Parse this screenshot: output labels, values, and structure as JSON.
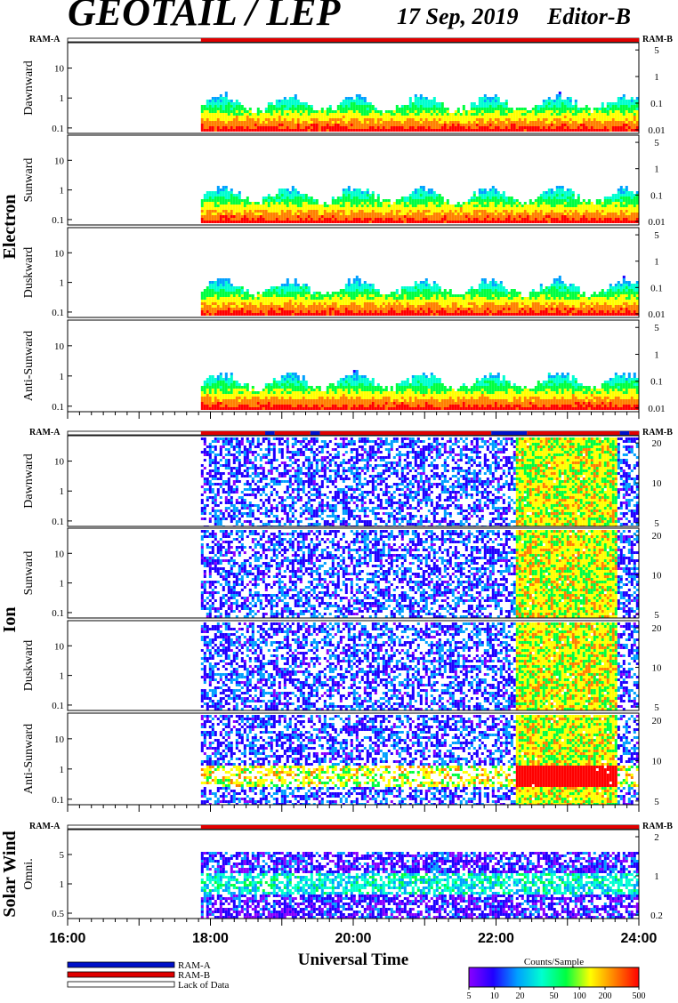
{
  "header": {
    "title": "GEOTAIL / LEP",
    "date": "17 Sep, 2019",
    "editor": "Editor-B"
  },
  "chart_data": {
    "type": "heatmap",
    "instrument": "GEOTAIL / LEP",
    "date": "17 Sep, 2019",
    "editor": "Editor-B",
    "xlabel": "Universal Time",
    "x_ticks": [
      "16:00",
      "18:00",
      "20:00",
      "22:00",
      "24:00"
    ],
    "xlim": [
      "16:00",
      "24:00"
    ],
    "data_start": "17:52",
    "groups": [
      {
        "name": "Electron",
        "mode_left": "RAM-A",
        "mode_right": "RAM-B",
        "panels": [
          {
            "name": "Dawnward",
            "left_ticks": [
              "10",
              "1",
              "0.1"
            ],
            "right_ticks": [
              "5",
              "1",
              "0.1",
              "0.01"
            ]
          },
          {
            "name": "Sunward",
            "left_ticks": [
              "10",
              "1",
              "0.1"
            ],
            "right_ticks": [
              "5",
              "1",
              "0.1",
              "0.01"
            ]
          },
          {
            "name": "Duskward",
            "left_ticks": [
              "10",
              "1",
              "0.1"
            ],
            "right_ticks": [
              "5",
              "1",
              "0.1",
              "0.01"
            ]
          },
          {
            "name": "Anti-Sunward",
            "left_ticks": [
              "10",
              "1",
              "0.1"
            ],
            "right_ticks": [
              "5",
              "1",
              "0.1",
              "0.01"
            ]
          }
        ]
      },
      {
        "name": "Ion",
        "mode_left": "RAM-A",
        "mode_right": "RAM-B",
        "panels": [
          {
            "name": "Dawnward",
            "left_ticks": [
              "10",
              "1",
              "0.1"
            ],
            "right_ticks": [
              "20",
              "10",
              "5"
            ]
          },
          {
            "name": "Sunward",
            "left_ticks": [
              "10",
              "1",
              "0.1"
            ],
            "right_ticks": [
              "20",
              "10",
              "5"
            ]
          },
          {
            "name": "Duskward",
            "left_ticks": [
              "10",
              "1",
              "0.1"
            ],
            "right_ticks": [
              "20",
              "10",
              "5"
            ]
          },
          {
            "name": "Anti-Sunward",
            "left_ticks": [
              "10",
              "1",
              "0.1"
            ],
            "right_ticks": [
              "20",
              "10",
              "5"
            ]
          }
        ]
      },
      {
        "name": "Solar Wind",
        "mode_left": "RAM-A",
        "mode_right": "RAM-B",
        "panels": [
          {
            "name": "Omni.",
            "left_ticks": [
              "5",
              "1",
              "0.5"
            ],
            "right_ticks": [
              "2",
              "1",
              "0.2"
            ]
          }
        ]
      }
    ],
    "mode_bars": [
      {
        "group": "Electron",
        "segments": [
          {
            "from": "17:52",
            "to": "24:00",
            "mode": "RAM-B"
          }
        ]
      },
      {
        "group": "Ion",
        "segments": [
          {
            "from": "17:52",
            "to": "18:46",
            "mode": "RAM-B"
          },
          {
            "from": "18:46",
            "to": "18:54",
            "mode": "RAM-A"
          },
          {
            "from": "18:54",
            "to": "19:24",
            "mode": "RAM-B"
          },
          {
            "from": "19:24",
            "to": "19:32",
            "mode": "RAM-A"
          },
          {
            "from": "19:32",
            "to": "21:56",
            "mode": "RAM-B"
          },
          {
            "from": "21:56",
            "to": "22:26",
            "mode": "RAM-A"
          },
          {
            "from": "22:26",
            "to": "23:44",
            "mode": "RAM-B"
          },
          {
            "from": "23:44",
            "to": "23:52",
            "mode": "RAM-A"
          },
          {
            "from": "23:52",
            "to": "24:00",
            "mode": "RAM-B"
          }
        ]
      },
      {
        "group": "Solar Wind",
        "segments": [
          {
            "from": "17:52",
            "to": "24:00",
            "mode": "RAM-B"
          }
        ]
      }
    ],
    "legend": [
      {
        "label": "RAM-A",
        "color": "#0010c8"
      },
      {
        "label": "RAM-B",
        "color": "#e00000"
      },
      {
        "label": "Lack of Data",
        "color": "#ffffff"
      }
    ],
    "colorbar": {
      "title": "Counts/Sample",
      "ticks": [
        "5",
        "10",
        "20",
        "50",
        "100",
        "200",
        "500"
      ],
      "colors": [
        "#8a00ff",
        "#2000ff",
        "#00a0ff",
        "#00ffd0",
        "#00ff40",
        "#ffff00",
        "#ff8000",
        "#ff0000"
      ]
    }
  }
}
